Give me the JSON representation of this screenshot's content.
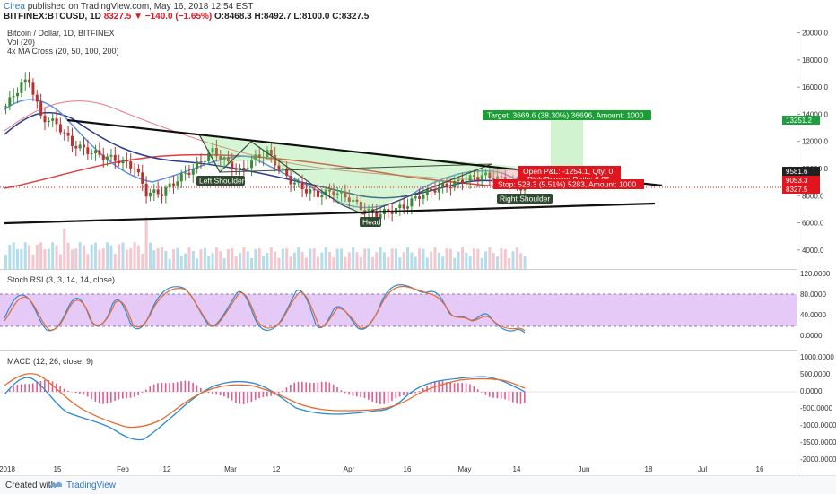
{
  "header": {
    "user": "Cirea",
    "published": "published on TradingView.com, May 16, 2018 12:54 EST",
    "symbol": "BITFINEX:BTCUSD, 1D",
    "last": "8327.5",
    "change": "▼ −140.0 (−1.65%)",
    "ohlc": "O:8468.3 H:8492.7 L:8100.0 C:8327.5"
  },
  "legend": {
    "title": "Bitcoin / Dollar, 1D, BITFINEX",
    "vol": "Vol (20)",
    "ma": "4x MA Cross (20, 50, 100, 200)"
  },
  "price_axis": {
    "ticks": [
      "20000.0",
      "18000.0",
      "16000.0",
      "14000.0",
      "12000.0",
      "10000.0",
      "8000.0",
      "6000.0",
      "4000.0"
    ],
    "labels": [
      {
        "text": "13251.2",
        "color": "#1e9e3e"
      },
      {
        "text": "9581.6",
        "color": "#222222"
      },
      {
        "text": "9053.3",
        "color": "#e0161f"
      },
      {
        "text": "8327.5",
        "color": "#e0161f"
      }
    ]
  },
  "annotations": {
    "target": "Target: 3669.6 (38.30%) 36696, Amount: 1000",
    "open_pl": "Open P&L: -1254.1, Qty: 0",
    "rr": "Risk/Reward Ratio: 6.95",
    "stop": "Stop: 528.3 (5.51%) 5283, Amount: 1000",
    "left_shoulder": "Left Shoulder",
    "head": "Head",
    "right_shoulder": "Right Shoulder"
  },
  "rsi": {
    "title": "Stoch RSI (3, 3, 14, 14, close)",
    "ticks": [
      "120.0000",
      "80.0000",
      "40.0000",
      "0.0000"
    ]
  },
  "macd": {
    "title": "MACD (12, 26, close, 9)",
    "ticks": [
      "1000.0000",
      "500.0000",
      "0.0000",
      "-500.0000",
      "-1000.0000",
      "-1500.0000",
      "-2000.0000"
    ]
  },
  "time_axis": [
    "2018",
    "15",
    "Feb",
    "12",
    "Mar",
    "12",
    "Apr",
    "16",
    "May",
    "14",
    "Jun",
    "18",
    "Jul",
    "16"
  ],
  "footer": {
    "created": "Created with",
    "brand": "TradingView"
  },
  "chart_data": {
    "type": "candlestick",
    "title": "Bitcoin / Dollar, 1D, BITFINEX",
    "ylim": [
      2600,
      20700
    ],
    "indicators": [
      "Vol (20)",
      "4x MA Cross (20, 50, 100, 200)",
      "Stoch RSI (3, 3, 14, 14, close)",
      "MACD (12, 26, close, 9)"
    ],
    "close_path": [
      [
        0,
        14600
      ],
      [
        4,
        16200
      ],
      [
        6,
        16500
      ],
      [
        9,
        13800
      ],
      [
        13,
        13300
      ],
      [
        17,
        11800
      ],
      [
        21,
        11300
      ],
      [
        25,
        10900
      ],
      [
        29,
        10600
      ],
      [
        33,
        10100
      ],
      [
        36,
        8200
      ],
      [
        40,
        8200
      ],
      [
        44,
        9200
      ],
      [
        48,
        10000
      ],
      [
        53,
        11300
      ],
      [
        57,
        10400
      ],
      [
        60,
        9800
      ],
      [
        64,
        10800
      ],
      [
        67,
        11200
      ],
      [
        70,
        10100
      ],
      [
        73,
        9100
      ],
      [
        77,
        8400
      ],
      [
        80,
        8100
      ],
      [
        84,
        8300
      ],
      [
        88,
        7800
      ],
      [
        92,
        6900
      ],
      [
        95,
        6600
      ],
      [
        99,
        6900
      ],
      [
        102,
        7200
      ],
      [
        106,
        8000
      ],
      [
        110,
        8500
      ],
      [
        114,
        8800
      ],
      [
        118,
        9200
      ],
      [
        122,
        9500
      ],
      [
        126,
        9300
      ],
      [
        130,
        8900
      ],
      [
        133,
        8500
      ]
    ]
  }
}
